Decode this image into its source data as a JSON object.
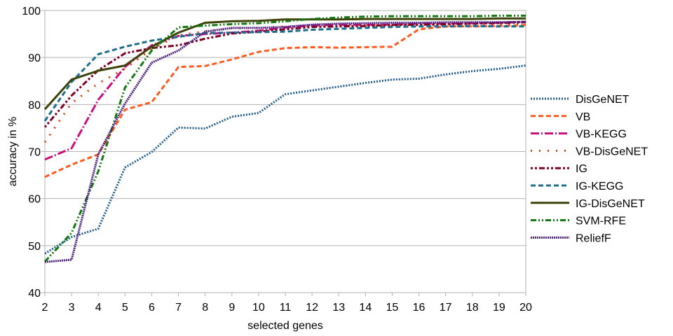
{
  "chart_data": {
    "type": "line",
    "xlabel": "selected genes",
    "ylabel": "accuracy in %",
    "x": [
      2,
      3,
      4,
      5,
      6,
      7,
      8,
      9,
      10,
      11,
      12,
      13,
      14,
      15,
      16,
      17,
      18,
      19,
      20
    ],
    "xlim": [
      2,
      20
    ],
    "ylim": [
      40,
      100
    ],
    "yticks": [
      40,
      50,
      60,
      70,
      80,
      90,
      100
    ],
    "grid": "horizontal",
    "legend": "right",
    "series": [
      {
        "name": "DisGeNET",
        "color": "#1f5c8c",
        "dash": "2,2",
        "values": [
          48.3,
          51.8,
          53.6,
          66.6,
          69.9,
          75.1,
          74.9,
          77.4,
          78.2,
          82.2,
          83.0,
          83.8,
          84.6,
          85.3,
          85.5,
          86.4,
          87.1,
          87.6,
          88.3
        ]
      },
      {
        "name": "VB",
        "color": "#ff5a1f",
        "dash": "7,4",
        "values": [
          64.6,
          67.2,
          69.4,
          78.9,
          80.5,
          88.0,
          88.2,
          89.6,
          91.2,
          92.0,
          92.2,
          92.1,
          92.2,
          92.3,
          96.0,
          96.6,
          96.6,
          96.7,
          96.9
        ]
      },
      {
        "name": "VB-KEGG",
        "color": "#c80f7d",
        "dash": "12,3,2,3",
        "values": [
          68.3,
          70.7,
          81.0,
          88.0,
          92.6,
          94.6,
          95.0,
          95.3,
          95.7,
          96.4,
          96.8,
          97.0,
          97.0,
          97.0,
          97.2,
          97.2,
          97.3,
          97.4,
          97.6
        ]
      },
      {
        "name": "VB-DisGeNET",
        "color": "#d9400f",
        "dash": "2,10",
        "values": [
          72.0,
          80.3,
          84.5,
          87.6,
          91.8,
          94.7,
          95.6,
          96.2,
          96.3,
          96.6,
          96.7,
          96.8,
          96.8,
          96.8,
          96.9,
          96.9,
          97.0,
          97.1,
          97.2
        ]
      },
      {
        "name": "IG",
        "color": "#7a0027",
        "dash": "3,3,3,3,8,3",
        "values": [
          75.2,
          81.9,
          87.3,
          90.9,
          92.0,
          92.6,
          94.0,
          95.1,
          95.5,
          96.0,
          96.5,
          96.6,
          96.7,
          96.9,
          97.0,
          97.1,
          97.2,
          97.3,
          97.5
        ]
      },
      {
        "name": "IG-KEGG",
        "color": "#1d6d8f",
        "dash": "7,4",
        "values": [
          76.5,
          84.8,
          90.7,
          92.3,
          93.6,
          94.4,
          95.2,
          95.3,
          95.4,
          95.5,
          95.9,
          96.1,
          96.3,
          96.5,
          96.6,
          96.6,
          96.7,
          96.6,
          96.6
        ]
      },
      {
        "name": "IG-DisGeNET",
        "color": "#3d4308",
        "dash": "",
        "values": [
          79.0,
          85.3,
          87.2,
          88.3,
          92.3,
          95.3,
          97.4,
          97.7,
          97.8,
          98.1,
          98.1,
          98.1,
          98.2,
          98.2,
          98.2,
          98.2,
          98.2,
          98.3,
          98.3
        ]
      },
      {
        "name": "SVM-RFE",
        "color": "#127812",
        "dash": "8,3,2,3,2,3",
        "values": [
          46.6,
          52.7,
          65.8,
          83.6,
          91.5,
          96.4,
          96.8,
          97.1,
          97.3,
          97.7,
          98.2,
          98.5,
          98.7,
          98.8,
          98.8,
          98.8,
          98.8,
          98.9,
          98.9
        ]
      },
      {
        "name": "ReliefF",
        "color": "#4b2080",
        "dash": "2,1",
        "values": [
          46.5,
          47.0,
          69.4,
          80.2,
          88.9,
          91.5,
          95.5,
          96.3,
          96.3,
          96.5,
          97.0,
          97.2,
          97.3,
          97.4,
          97.4,
          97.5,
          97.5,
          97.5,
          97.6
        ]
      }
    ]
  }
}
